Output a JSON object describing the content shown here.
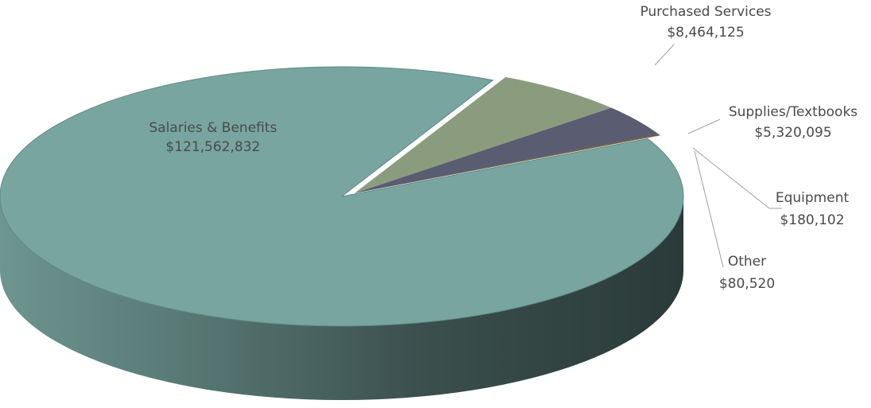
{
  "chart_data": {
    "type": "pie",
    "style": "3d",
    "title": "",
    "legend": "none",
    "series": [
      {
        "categories": [
          "Salaries & Benefits",
          "Purchased Services",
          "Supplies/Textbooks",
          "Equipment",
          "Other"
        ],
        "values": [
          121562832,
          8464125,
          5320095,
          180102,
          80520
        ],
        "value_labels": [
          "$121,562,832",
          "$8,464,125",
          "$5,320,095",
          "$180,102",
          "$80,520"
        ],
        "colors": [
          "#78a5a0",
          "#8b9c7e",
          "#5a5c72",
          "#6b5230",
          "#8a7a52"
        ]
      }
    ]
  }
}
